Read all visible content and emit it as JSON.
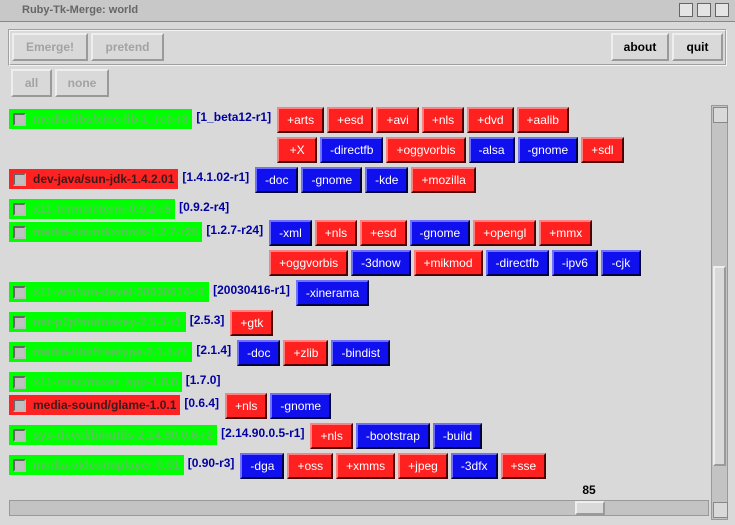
{
  "window": {
    "title": "Ruby-Tk-Merge: world"
  },
  "toolbar": {
    "left": [
      "Emerge!",
      "pretend"
    ],
    "right": [
      "about",
      "quit"
    ]
  },
  "selection": [
    "all",
    "none"
  ],
  "packages": [
    {
      "name": "media-libs/xine-lib-1_rc0-r3",
      "status": "green",
      "installed": "[1_beta12-r1]",
      "flags": [
        [
          "+arts",
          "+esd",
          "+avi",
          "+nls",
          "+dvd",
          "+aalib"
        ],
        [
          "+X",
          "-directfb",
          "+oggvorbis",
          "-alsa",
          "-gnome",
          "+sdl"
        ]
      ]
    },
    {
      "name": "dev-java/sun-jdk-1.4.2.01",
      "status": "red",
      "installed": "[1.4.1.02-r1]",
      "flags": [
        [
          "-doc",
          "-gnome",
          "-kde",
          "+mozilla"
        ]
      ]
    },
    {
      "name": "x11-terms/eterm-0.9.2-r5",
      "status": "green",
      "installed": "[0.9.2-r4]",
      "flags": []
    },
    {
      "name": "media-sound/xmms-1.2.7-r25",
      "status": "green",
      "installed": "[1.2.7-r24]",
      "flags": [
        [
          "-xml",
          "+nls",
          "+esd",
          "-gnome",
          "+opengl",
          "+mmx"
        ],
        [
          "+oggvorbis",
          "-3dnow",
          "+mikmod",
          "-directfb",
          "-ipv6",
          "-cjk"
        ]
      ]
    },
    {
      "name": "x11-wm/ion-devel-20030614-r1",
      "status": "green",
      "installed": "[20030416-r1]",
      "flags": [
        [
          "-xinerama"
        ]
      ]
    },
    {
      "name": "net-p2p/mldonkey-2.5.3-r1",
      "status": "green",
      "installed": "[2.5.3]",
      "flags": [
        [
          "+gtk"
        ]
      ]
    },
    {
      "name": "media-libs/freetype-2.1.4-r1",
      "status": "green",
      "installed": "[2.1.4]",
      "flags": [
        [
          "-doc",
          "+zlib",
          "-bindist"
        ]
      ]
    },
    {
      "name": "x11-misc/mixer_app-1.8.0",
      "status": "green",
      "installed": "[1.7.0]",
      "flags": []
    },
    {
      "name": "media-sound/glame-1.0.1",
      "status": "red",
      "installed": "[0.6.4]",
      "flags": [
        [
          "+nls",
          "-gnome"
        ]
      ]
    },
    {
      "name": "sys-devel/binutils-2.14.90.0.6-r2",
      "status": "green",
      "installed": "[2.14.90.0.5-r1]",
      "flags": [
        [
          "+nls",
          "-bootstrap",
          "-build"
        ]
      ]
    },
    {
      "name": "media-video/mplayer-0.91",
      "status": "green",
      "installed": "[0.90-r3]",
      "flags": [
        [
          "-dga",
          "+oss",
          "+xmms",
          "+jpeg",
          "-3dfx",
          "+sse"
        ]
      ]
    }
  ],
  "scale": 85
}
